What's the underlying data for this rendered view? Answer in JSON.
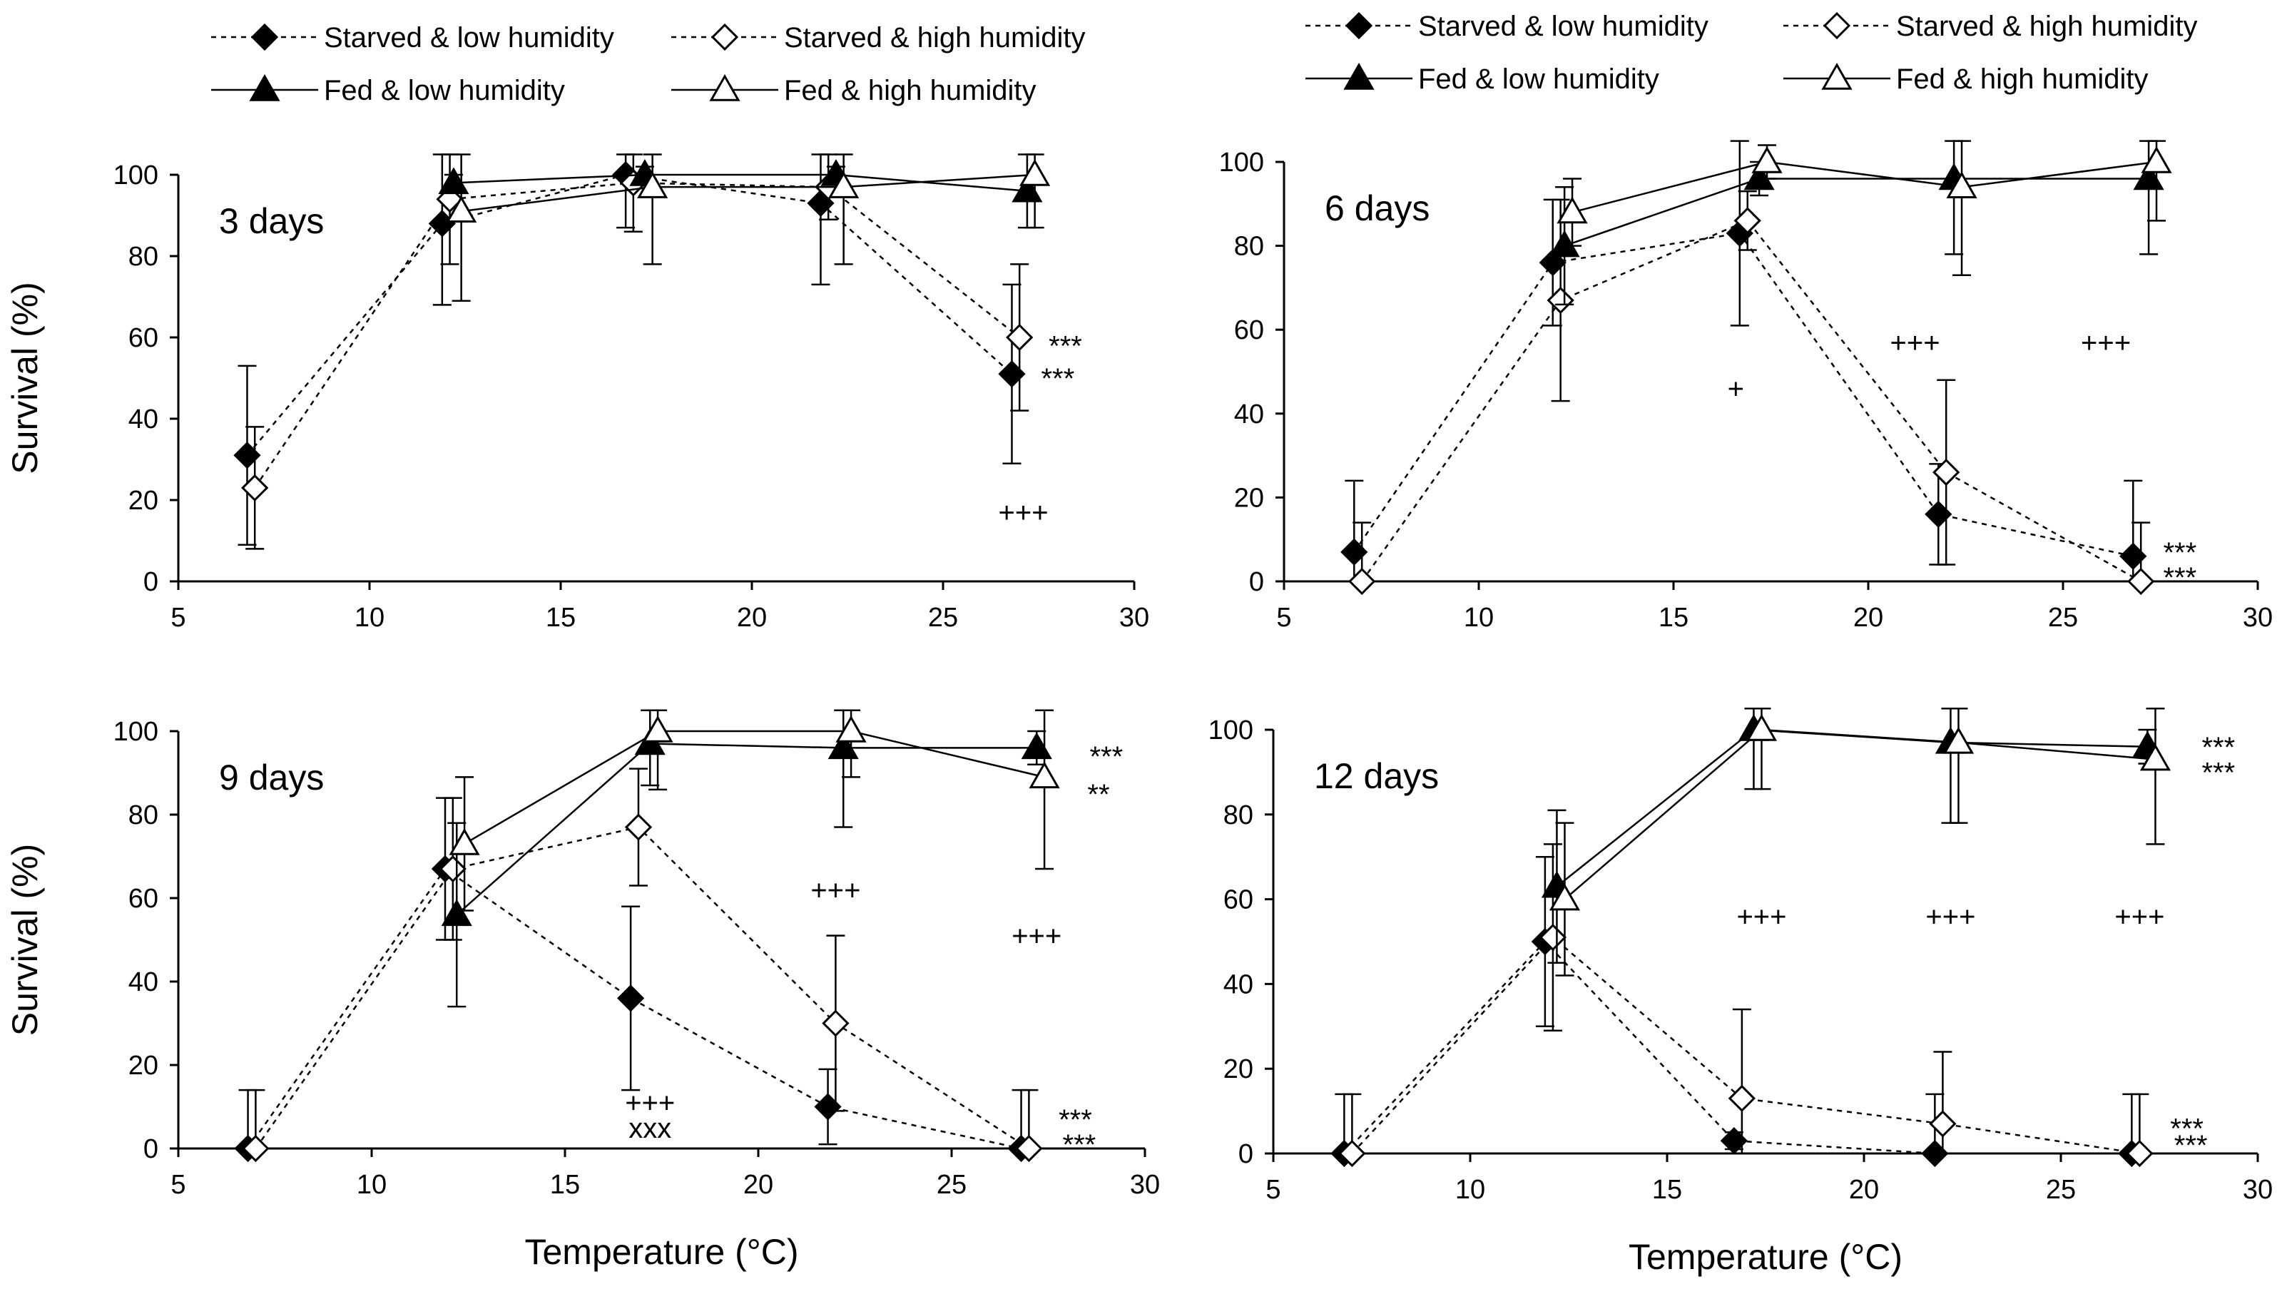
{
  "chart_data": [
    {
      "type": "line",
      "panel_label": "3 days",
      "xlabel": "",
      "ylabel": "Survival (%)",
      "xlim": [
        5,
        30
      ],
      "ylim": [
        0,
        100
      ],
      "x_ticks": [
        5,
        10,
        15,
        20,
        25,
        30
      ],
      "y_ticks": [
        0,
        20,
        40,
        60,
        80,
        100
      ],
      "series": [
        {
          "key": "SL",
          "name": "Starved & low humidity",
          "marker": "diamond",
          "fill": "solid",
          "line": "dotted",
          "x": [
            6.8,
            11.9,
            16.7,
            21.8,
            26.8
          ],
          "values": [
            31,
            88,
            100,
            93,
            51
          ],
          "err": [
            22,
            20,
            13,
            20,
            22
          ]
        },
        {
          "key": "SH",
          "name": "Starved & high humidity",
          "marker": "diamond",
          "fill": "open",
          "line": "dotted",
          "x": [
            7.0,
            12.1,
            16.9,
            22.0,
            27.0
          ],
          "values": [
            23,
            94,
            98,
            97,
            60
          ],
          "err": [
            15,
            16,
            12,
            8,
            18
          ]
        },
        {
          "key": "FL",
          "name": "Fed & low humidity",
          "marker": "triangle",
          "fill": "solid",
          "line": "solid",
          "x": [
            12.2,
            17.2,
            22.2,
            27.2
          ],
          "values": [
            98,
            100,
            100,
            96
          ],
          "err": [
            2,
            2,
            2,
            9
          ]
        },
        {
          "key": "FH",
          "name": "Fed & high humidity",
          "marker": "triangle",
          "fill": "open",
          "line": "solid",
          "x": [
            12.4,
            17.4,
            22.4,
            27.4
          ],
          "values": [
            91,
            97,
            97,
            100
          ],
          "err": [
            22,
            19,
            19,
            13
          ]
        }
      ],
      "annotations": [
        {
          "text": "***",
          "x": 28.2,
          "y": 58
        },
        {
          "text": "***",
          "x": 28.0,
          "y": 50
        },
        {
          "text": "+++",
          "x": 27.1,
          "y": 17
        }
      ]
    },
    {
      "type": "line",
      "panel_label": "6 days",
      "xlabel": "",
      "ylabel": "",
      "xlim": [
        5,
        30
      ],
      "ylim": [
        0,
        100
      ],
      "x_ticks": [
        5,
        10,
        15,
        20,
        25,
        30
      ],
      "y_ticks": [
        0,
        20,
        40,
        60,
        80,
        100
      ],
      "series": [
        {
          "key": "SL",
          "name": "Starved & low humidity",
          "marker": "diamond",
          "fill": "solid",
          "line": "dotted",
          "x": [
            6.8,
            11.9,
            16.7,
            21.8,
            26.8
          ],
          "values": [
            7,
            76,
            83,
            16,
            6
          ],
          "err": [
            17,
            15,
            22,
            12,
            18
          ]
        },
        {
          "key": "SH",
          "name": "Starved & high humidity",
          "marker": "diamond",
          "fill": "open",
          "line": "dotted",
          "x": [
            7.0,
            12.1,
            16.9,
            22.0,
            27.0
          ],
          "values": [
            0,
            67,
            86,
            26,
            0
          ],
          "err": [
            14,
            24,
            7,
            22,
            14
          ]
        },
        {
          "key": "FL",
          "name": "Fed & low humidity",
          "marker": "triangle",
          "fill": "solid",
          "line": "solid",
          "x": [
            12.2,
            17.2,
            22.2,
            27.2
          ],
          "values": [
            80,
            96,
            96,
            96
          ],
          "err": [
            14,
            4,
            18,
            18
          ]
        },
        {
          "key": "FH",
          "name": "Fed & high humidity",
          "marker": "triangle",
          "fill": "open",
          "line": "solid",
          "x": [
            12.4,
            17.4,
            22.4,
            27.4
          ],
          "values": [
            88,
            100,
            94,
            100
          ],
          "err": [
            8,
            4,
            21,
            14
          ]
        }
      ],
      "annotations": [
        {
          "text": "+++",
          "x": 21.2,
          "y": 57
        },
        {
          "text": "+++",
          "x": 26.1,
          "y": 57
        },
        {
          "text": "+",
          "x": 16.6,
          "y": 46
        },
        {
          "text": "***",
          "x": 28.0,
          "y": 7
        },
        {
          "text": "***",
          "x": 28.0,
          "y": 1
        }
      ]
    },
    {
      "type": "line",
      "panel_label": "9 days",
      "xlabel": "Temperature (°C)",
      "ylabel": "Survival (%)",
      "xlim": [
        5,
        30
      ],
      "ylim": [
        0,
        100
      ],
      "x_ticks": [
        5,
        10,
        15,
        20,
        25,
        30
      ],
      "y_ticks": [
        0,
        20,
        40,
        60,
        80,
        100
      ],
      "series": [
        {
          "key": "SL",
          "name": "Starved & low humidity",
          "marker": "diamond",
          "fill": "solid",
          "line": "dotted",
          "x": [
            6.8,
            11.9,
            16.7,
            21.8,
            26.8
          ],
          "values": [
            0,
            67,
            36,
            10,
            0
          ],
          "err": [
            14,
            17,
            22,
            9,
            14
          ]
        },
        {
          "key": "SH",
          "name": "Starved & high humidity",
          "marker": "diamond",
          "fill": "open",
          "line": "dotted",
          "x": [
            7.0,
            12.1,
            16.9,
            22.0,
            27.0
          ],
          "values": [
            0,
            67,
            77,
            30,
            0
          ],
          "err": [
            14,
            17,
            14,
            21,
            14
          ]
        },
        {
          "key": "FL",
          "name": "Fed & low humidity",
          "marker": "triangle",
          "fill": "solid",
          "line": "solid",
          "x": [
            12.2,
            17.2,
            22.2,
            27.2
          ],
          "values": [
            56,
            97,
            96,
            96
          ],
          "err": [
            22,
            10,
            19,
            4
          ]
        },
        {
          "key": "FH",
          "name": "Fed & high humidity",
          "marker": "triangle",
          "fill": "open",
          "line": "solid",
          "x": [
            12.4,
            17.4,
            22.4,
            27.4
          ],
          "values": [
            73,
            100,
            100,
            89
          ],
          "err": [
            16,
            14,
            11,
            22
          ]
        }
      ],
      "annotations": [
        {
          "text": "***",
          "x": 29.0,
          "y": 94
        },
        {
          "text": "**",
          "x": 28.8,
          "y": 85
        },
        {
          "text": "+++",
          "x": 22.0,
          "y": 62
        },
        {
          "text": "+++",
          "x": 27.2,
          "y": 51
        },
        {
          "text": "+++",
          "x": 17.2,
          "y": 11
        },
        {
          "text": "xxx",
          "x": 17.2,
          "y": 5
        },
        {
          "text": "***",
          "x": 28.2,
          "y": 7
        },
        {
          "text": "***",
          "x": 28.3,
          "y": 1
        }
      ]
    },
    {
      "type": "line",
      "panel_label": "12 days",
      "xlabel": "Temperature (°C)",
      "ylabel": "",
      "xlim": [
        5,
        30
      ],
      "ylim": [
        0,
        100
      ],
      "x_ticks": [
        5,
        10,
        15,
        20,
        25,
        30
      ],
      "y_ticks": [
        0,
        20,
        40,
        60,
        80,
        100
      ],
      "series": [
        {
          "key": "SL",
          "name": "Starved & low humidity",
          "marker": "diamond",
          "fill": "solid",
          "line": "dotted",
          "x": [
            6.8,
            11.9,
            16.7,
            21.8,
            26.8
          ],
          "values": [
            0,
            50,
            3,
            0,
            0
          ],
          "err": [
            14,
            20,
            2,
            14,
            14
          ]
        },
        {
          "key": "SH",
          "name": "Starved & high humidity",
          "marker": "diamond",
          "fill": "open",
          "line": "dotted",
          "x": [
            7.0,
            12.1,
            16.9,
            22.0,
            27.0
          ],
          "values": [
            0,
            51,
            13,
            7,
            0
          ],
          "err": [
            14,
            22,
            21,
            17,
            14
          ]
        },
        {
          "key": "FL",
          "name": "Fed & low humidity",
          "marker": "triangle",
          "fill": "solid",
          "line": "solid",
          "x": [
            12.2,
            17.2,
            22.2,
            27.2
          ],
          "values": [
            63,
            100,
            97,
            96
          ],
          "err": [
            18,
            14,
            19,
            4
          ]
        },
        {
          "key": "FH",
          "name": "Fed & high humidity",
          "marker": "triangle",
          "fill": "open",
          "line": "solid",
          "x": [
            12.4,
            17.4,
            22.4,
            27.4
          ],
          "values": [
            60,
            100,
            97,
            93
          ],
          "err": [
            18,
            14,
            19,
            20
          ]
        }
      ],
      "annotations": [
        {
          "text": "***",
          "x": 29.0,
          "y": 96
        },
        {
          "text": "***",
          "x": 29.0,
          "y": 90
        },
        {
          "text": "+++",
          "x": 17.4,
          "y": 56
        },
        {
          "text": "+++",
          "x": 22.2,
          "y": 56
        },
        {
          "text": "+++",
          "x": 27.0,
          "y": 56
        },
        {
          "text": "***",
          "x": 28.2,
          "y": 6
        },
        {
          "text": "***",
          "x": 28.3,
          "y": 2
        }
      ]
    }
  ],
  "legend_left": [
    {
      "key": "SL",
      "label": "Starved & low humidity"
    },
    {
      "key": "SH",
      "label": "Starved & high humidity"
    },
    {
      "key": "FL",
      "label": "Fed & low humidity"
    },
    {
      "key": "FH",
      "label": "Fed & high humidity"
    }
  ],
  "legend_right": [
    {
      "key": "SL",
      "label": "Starved & low humidity"
    },
    {
      "key": "SH",
      "label": "Starved & high humidity"
    },
    {
      "key": "FL",
      "label": "Fed & low humidity"
    },
    {
      "key": "FH",
      "label": "Fed & high humidity"
    }
  ],
  "colors": {
    "ink": "#000000",
    "background": "#ffffff"
  }
}
